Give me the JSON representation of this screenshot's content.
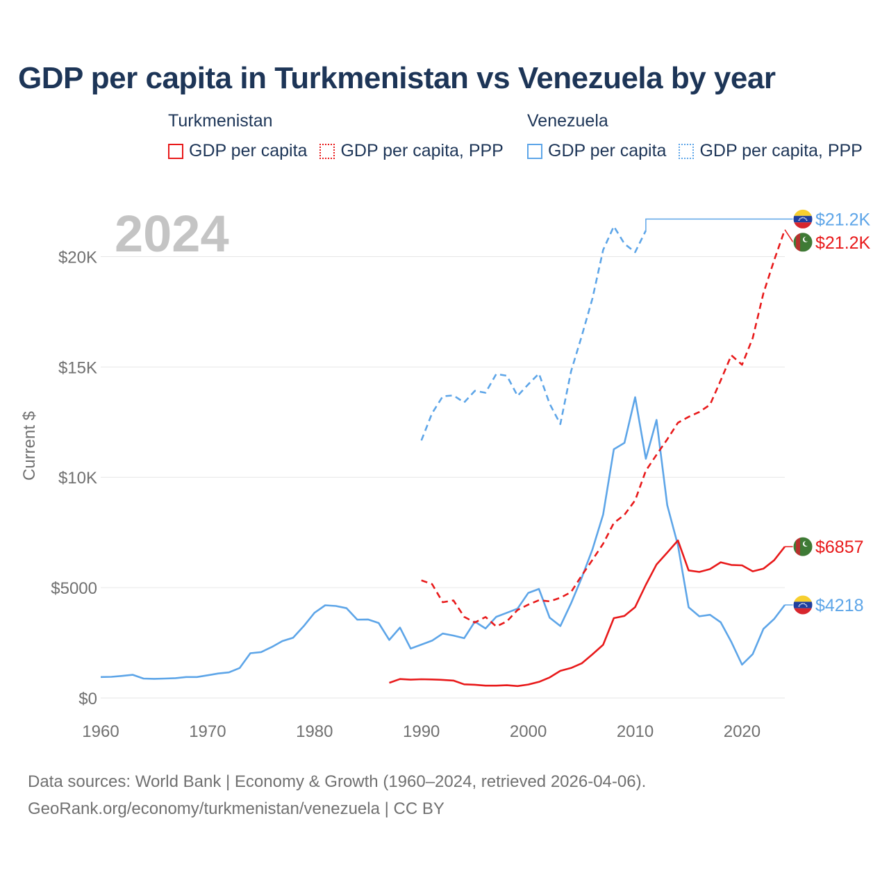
{
  "chart_data": {
    "type": "line",
    "title": "GDP per capita in Turkmenistan vs Venezuela by year",
    "year_label": "2024",
    "ylabel": "Current $",
    "xlim": [
      1960,
      2024
    ],
    "ylim": [
      0,
      22500
    ],
    "x_ticks": [
      1960,
      1970,
      1980,
      1990,
      2000,
      2010,
      2020
    ],
    "x_tick_labels": [
      "1960",
      "1970",
      "1980",
      "1990",
      "2000",
      "2010",
      "2020"
    ],
    "y_ticks": [
      0,
      5000,
      10000,
      15000,
      20000
    ],
    "y_tick_labels": [
      "$0",
      "$5000",
      "$10K",
      "$15K",
      "$20K"
    ],
    "legend": {
      "groups": [
        {
          "name": "Turkmenistan",
          "items": [
            "GDP per capita",
            "GDP per capita, PPP"
          ]
        },
        {
          "name": "Venezuela",
          "items": [
            "GDP per capita",
            "GDP per capita, PPP"
          ]
        }
      ]
    },
    "series": [
      {
        "name": "Venezuela GDP per capita",
        "country": "Venezuela",
        "color": "#5da5e8",
        "dash": "solid",
        "end_label": "$4218",
        "end_value": 4218,
        "label_value": 4218,
        "x": [
          1960,
          1961,
          1962,
          1963,
          1964,
          1965,
          1966,
          1967,
          1968,
          1969,
          1970,
          1971,
          1972,
          1973,
          1974,
          1975,
          1976,
          1977,
          1978,
          1979,
          1980,
          1981,
          1982,
          1983,
          1984,
          1985,
          1986,
          1987,
          1988,
          1989,
          1990,
          1991,
          1992,
          1993,
          1994,
          1995,
          1996,
          1997,
          1998,
          1999,
          2000,
          2001,
          2002,
          2003,
          2004,
          2005,
          2006,
          2007,
          2008,
          2009,
          2010,
          2011,
          2012,
          2013,
          2014,
          2015,
          2016,
          2017,
          2018,
          2019,
          2020,
          2021,
          2022,
          2023,
          2024
        ],
        "values": [
          950,
          960,
          1000,
          1050,
          880,
          870,
          880,
          900,
          950,
          950,
          1030,
          1110,
          1160,
          1360,
          2030,
          2080,
          2310,
          2580,
          2730,
          3260,
          3860,
          4200,
          4170,
          4070,
          3550,
          3560,
          3400,
          2630,
          3190,
          2240,
          2420,
          2600,
          2920,
          2830,
          2710,
          3460,
          3150,
          3680,
          3860,
          4050,
          4760,
          4940,
          3640,
          3260,
          4290,
          5450,
          6730,
          8310,
          11270,
          11560,
          13630,
          10840,
          12600,
          8740,
          6920,
          4110,
          3700,
          3770,
          3430,
          2540,
          1510,
          1990,
          3130,
          3580,
          4218
        ]
      },
      {
        "name": "Venezuela GDP per capita, PPP",
        "country": "Venezuela",
        "color": "#5da5e8",
        "dash": "dashed",
        "end_label": "$21.2K",
        "end_value": 21180,
        "label_value": 21700,
        "x": [
          1990,
          1991,
          1992,
          1993,
          1994,
          1995,
          1996,
          1997,
          1998,
          1999,
          2000,
          2001,
          2002,
          2003,
          2004,
          2005,
          2006,
          2007,
          2008,
          2009,
          2010,
          2011
        ],
        "values": [
          11670,
          12900,
          13670,
          13710,
          13390,
          13920,
          13830,
          14680,
          14600,
          13690,
          14210,
          14700,
          13330,
          12410,
          14800,
          16400,
          18100,
          20300,
          21370,
          20580,
          20200,
          21180
        ]
      },
      {
        "name": "Turkmenistan GDP per capita",
        "country": "Turkmenistan",
        "color": "#e8191a",
        "dash": "solid",
        "end_label": "$6857",
        "end_value": 6857,
        "label_value": 6857,
        "x": [
          1987,
          1988,
          1989,
          1990,
          1991,
          1992,
          1993,
          1994,
          1995,
          1996,
          1997,
          1998,
          1999,
          2000,
          2001,
          2002,
          2003,
          2004,
          2005,
          2006,
          2007,
          2008,
          2009,
          2010,
          2011,
          2012,
          2013,
          2014,
          2015,
          2016,
          2017,
          2018,
          2019,
          2020,
          2021,
          2022,
          2023,
          2024
        ],
        "values": [
          690,
          860,
          830,
          850,
          840,
          820,
          790,
          620,
          600,
          560,
          560,
          580,
          540,
          610,
          730,
          930,
          1230,
          1360,
          1570,
          1980,
          2410,
          3620,
          3720,
          4120,
          5130,
          6050,
          6590,
          7140,
          5780,
          5710,
          5840,
          6150,
          6030,
          6010,
          5740,
          5860,
          6240,
          6857
        ]
      },
      {
        "name": "Turkmenistan GDP per capita, PPP",
        "country": "Turkmenistan",
        "color": "#e8191a",
        "dash": "dashed",
        "end_label": "$21.2K",
        "end_value": 21220,
        "label_value": 20650,
        "x": [
          1990,
          1991,
          1992,
          1993,
          1994,
          1995,
          1996,
          1997,
          1998,
          1999,
          2000,
          2001,
          2002,
          2003,
          2004,
          2005,
          2006,
          2007,
          2008,
          2009,
          2010,
          2011,
          2012,
          2013,
          2014,
          2015,
          2016,
          2017,
          2018,
          2019,
          2020,
          2021,
          2022,
          2023,
          2024
        ],
        "values": [
          5330,
          5160,
          4340,
          4420,
          3680,
          3420,
          3670,
          3240,
          3470,
          3990,
          4230,
          4430,
          4380,
          4540,
          4800,
          5550,
          6260,
          6990,
          7930,
          8300,
          8960,
          10300,
          11020,
          11720,
          12470,
          12740,
          12960,
          13290,
          14390,
          15530,
          15100,
          16310,
          18340,
          19830,
          21220
        ]
      }
    ]
  },
  "footer": {
    "line1": "Data sources: World Bank | Economy & Growth (1960–2024, retrieved 2026-04-06).",
    "line2": "GeoRank.org/economy/turkmenistan/venezuela | CC BY"
  }
}
